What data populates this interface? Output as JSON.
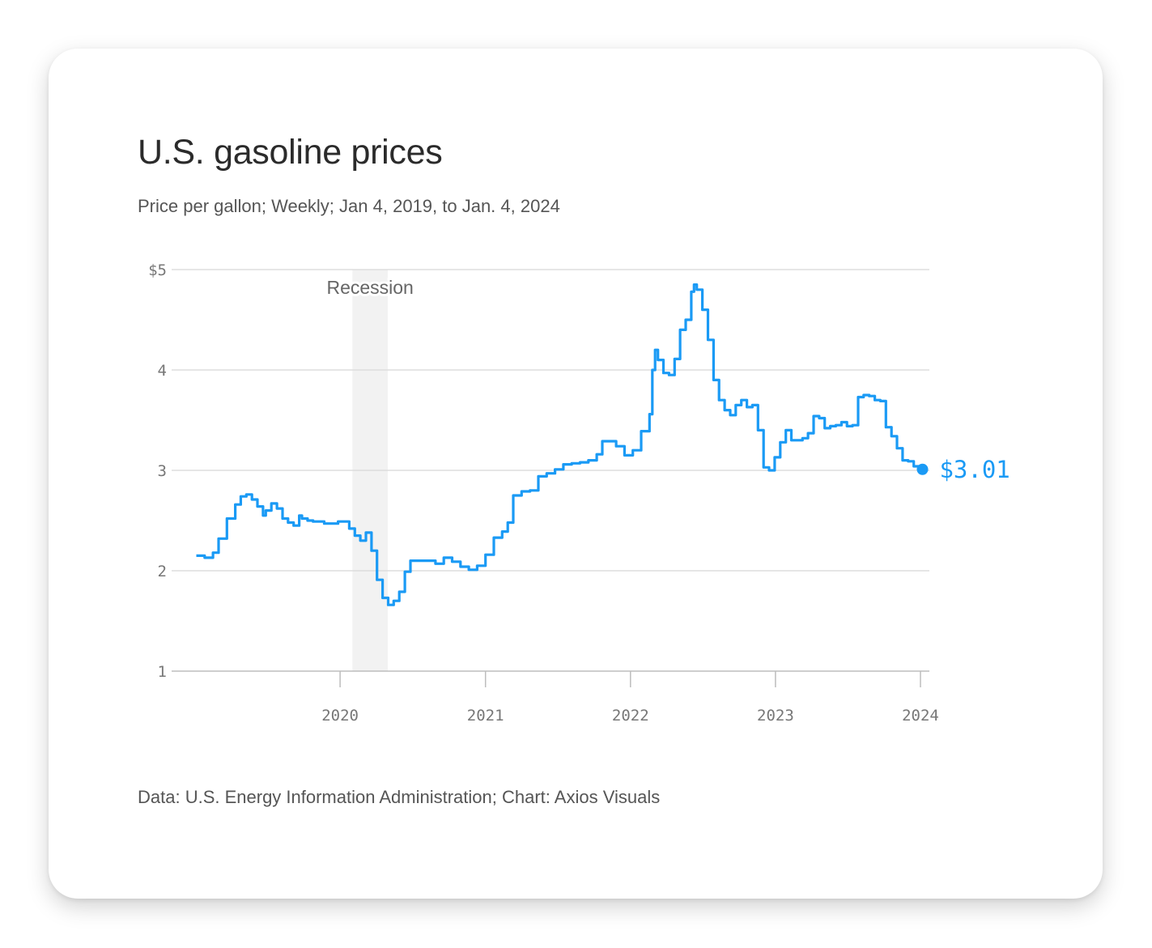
{
  "card": {
    "title": "U.S. gasoline prices",
    "subtitle": "Price per gallon; Weekly; Jan 4, 2019, to Jan. 4, 2024",
    "source": "Data: U.S. Energy Information Administration; Chart: Axios Visuals"
  },
  "chart_data": {
    "type": "line",
    "title": "U.S. gasoline prices",
    "subtitle": "Price per gallon; Weekly; Jan 4, 2019, to Jan. 4, 2024",
    "xlabel": "",
    "ylabel": "",
    "x_range": [
      "2019-01-04",
      "2024-01-04"
    ],
    "ylim": [
      1,
      5
    ],
    "y_ticks": [
      {
        "value": 5,
        "label": "$5"
      },
      {
        "value": 4,
        "label": "4"
      },
      {
        "value": 3,
        "label": "3"
      },
      {
        "value": 2,
        "label": "2"
      },
      {
        "value": 1,
        "label": "1"
      }
    ],
    "x_ticks": [
      {
        "value": "2020-01-01",
        "label": "2020"
      },
      {
        "value": "2021-01-01",
        "label": "2021"
      },
      {
        "value": "2022-01-01",
        "label": "2022"
      },
      {
        "value": "2023-01-01",
        "label": "2023"
      },
      {
        "value": "2024-01-01",
        "label": "2024"
      }
    ],
    "grid": true,
    "line_color": "#1a9af5",
    "shading": {
      "label": "Recession",
      "start": "2020-02-01",
      "end": "2020-04-30",
      "color": "#f2f2f2"
    },
    "end_point": {
      "x": "2024-01-04",
      "y": 3.01,
      "label": "$3.01"
    },
    "series": [
      {
        "x": [
          "2019-01-04",
          "2019-01-25",
          "2019-02-15",
          "2019-03-01",
          "2019-03-22",
          "2019-04-12",
          "2019-04-26",
          "2019-05-10",
          "2019-05-24",
          "2019-06-07",
          "2019-06-21",
          "2019-06-28",
          "2019-07-12",
          "2019-07-26",
          "2019-08-09",
          "2019-08-23",
          "2019-09-06",
          "2019-09-20",
          "2019-09-27",
          "2019-10-11",
          "2019-10-25",
          "2019-11-08",
          "2019-11-22",
          "2019-12-06",
          "2019-12-27",
          "2020-01-10",
          "2020-01-24",
          "2020-02-07",
          "2020-02-21",
          "2020-03-06",
          "2020-03-20",
          "2020-04-03",
          "2020-04-17",
          "2020-05-01",
          "2020-05-15",
          "2020-05-29",
          "2020-06-12",
          "2020-06-26",
          "2020-07-17",
          "2020-08-07",
          "2020-08-28",
          "2020-09-18",
          "2020-10-09",
          "2020-10-30",
          "2020-11-20",
          "2020-12-11",
          "2021-01-01",
          "2021-01-22",
          "2021-02-12",
          "2021-02-26",
          "2021-03-12",
          "2021-04-02",
          "2021-04-23",
          "2021-05-14",
          "2021-06-04",
          "2021-06-25",
          "2021-07-16",
          "2021-08-06",
          "2021-08-27",
          "2021-09-17",
          "2021-10-08",
          "2021-10-22",
          "2021-11-05",
          "2021-11-26",
          "2021-12-17",
          "2022-01-07",
          "2022-01-28",
          "2022-02-18",
          "2022-02-25",
          "2022-03-04",
          "2022-03-11",
          "2022-03-25",
          "2022-04-08",
          "2022-04-22",
          "2022-05-06",
          "2022-05-20",
          "2022-06-03",
          "2022-06-10",
          "2022-06-17",
          "2022-07-01",
          "2022-07-15",
          "2022-07-29",
          "2022-08-12",
          "2022-08-26",
          "2022-09-09",
          "2022-09-23",
          "2022-10-07",
          "2022-10-21",
          "2022-11-04",
          "2022-11-18",
          "2022-12-02",
          "2022-12-16",
          "2022-12-30",
          "2023-01-13",
          "2023-01-27",
          "2023-02-10",
          "2023-02-24",
          "2023-03-10",
          "2023-03-24",
          "2023-04-07",
          "2023-04-21",
          "2023-05-05",
          "2023-05-19",
          "2023-06-02",
          "2023-06-16",
          "2023-06-30",
          "2023-07-14",
          "2023-07-28",
          "2023-08-11",
          "2023-08-25",
          "2023-09-08",
          "2023-09-22",
          "2023-10-06",
          "2023-10-20",
          "2023-11-03",
          "2023-11-17",
          "2023-12-01",
          "2023-12-15",
          "2023-12-29",
          "2024-01-04"
        ],
        "y": [
          2.15,
          2.13,
          2.18,
          2.32,
          2.52,
          2.66,
          2.74,
          2.76,
          2.71,
          2.64,
          2.55,
          2.6,
          2.67,
          2.62,
          2.52,
          2.48,
          2.45,
          2.55,
          2.52,
          2.5,
          2.49,
          2.49,
          2.47,
          2.47,
          2.49,
          2.49,
          2.42,
          2.35,
          2.3,
          2.38,
          2.2,
          1.91,
          1.73,
          1.66,
          1.7,
          1.79,
          1.99,
          2.1,
          2.1,
          2.1,
          2.07,
          2.13,
          2.09,
          2.04,
          2.01,
          2.05,
          2.16,
          2.33,
          2.39,
          2.48,
          2.75,
          2.79,
          2.8,
          2.94,
          2.97,
          3.01,
          3.06,
          3.07,
          3.08,
          3.1,
          3.16,
          3.29,
          3.29,
          3.24,
          3.15,
          3.2,
          3.39,
          3.56,
          4.0,
          4.2,
          4.1,
          3.97,
          3.95,
          4.11,
          4.4,
          4.5,
          4.78,
          4.85,
          4.8,
          4.6,
          4.3,
          3.9,
          3.7,
          3.6,
          3.55,
          3.65,
          3.7,
          3.63,
          3.65,
          3.4,
          3.03,
          3.0,
          3.13,
          3.28,
          3.4,
          3.3,
          3.3,
          3.32,
          3.37,
          3.54,
          3.52,
          3.42,
          3.44,
          3.45,
          3.48,
          3.44,
          3.45,
          3.73,
          3.75,
          3.74,
          3.7,
          3.69,
          3.43,
          3.34,
          3.22,
          3.1,
          3.09,
          3.04,
          3.01,
          3.01
        ]
      }
    ]
  }
}
